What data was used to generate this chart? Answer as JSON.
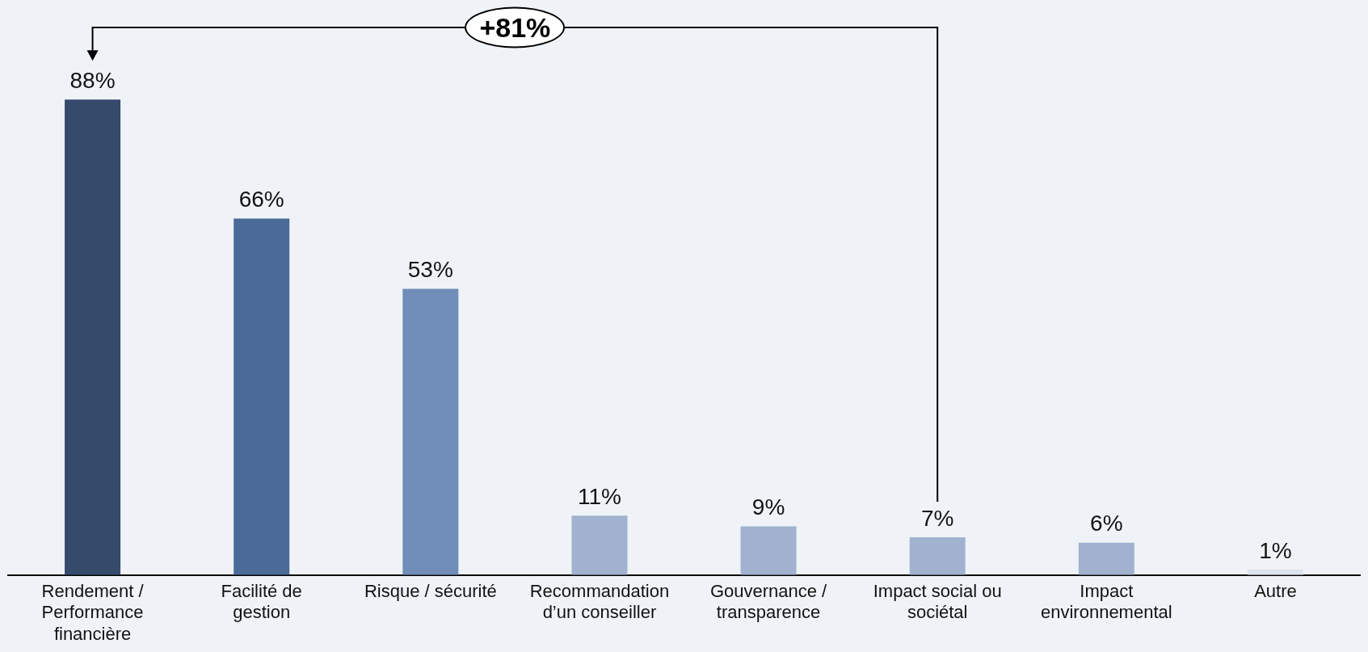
{
  "chart_data": {
    "type": "bar",
    "categories": [
      "Rendement / Performance financière",
      "Facilité de gestion",
      "Risque / sécurité",
      "Recommandation d’un conseiller",
      "Gouvernance / transparence",
      "Impact social ou sociétal",
      "Impact environnemental",
      "Autre"
    ],
    "values": [
      88,
      66,
      53,
      11,
      9,
      7,
      6,
      1
    ],
    "colors": [
      "#364b6b",
      "#4a6a98",
      "#6f8db8",
      "#a0b2cf",
      "#a0b2cf",
      "#a0b2cf",
      "#a0b2cf",
      "#dde3ec"
    ],
    "value_labels": [
      "88%",
      "66%",
      "53%",
      "11%",
      "9%",
      "7%",
      "6%",
      "1%"
    ],
    "annotations": [
      "+81%"
    ],
    "legend": false,
    "grid": false
  }
}
